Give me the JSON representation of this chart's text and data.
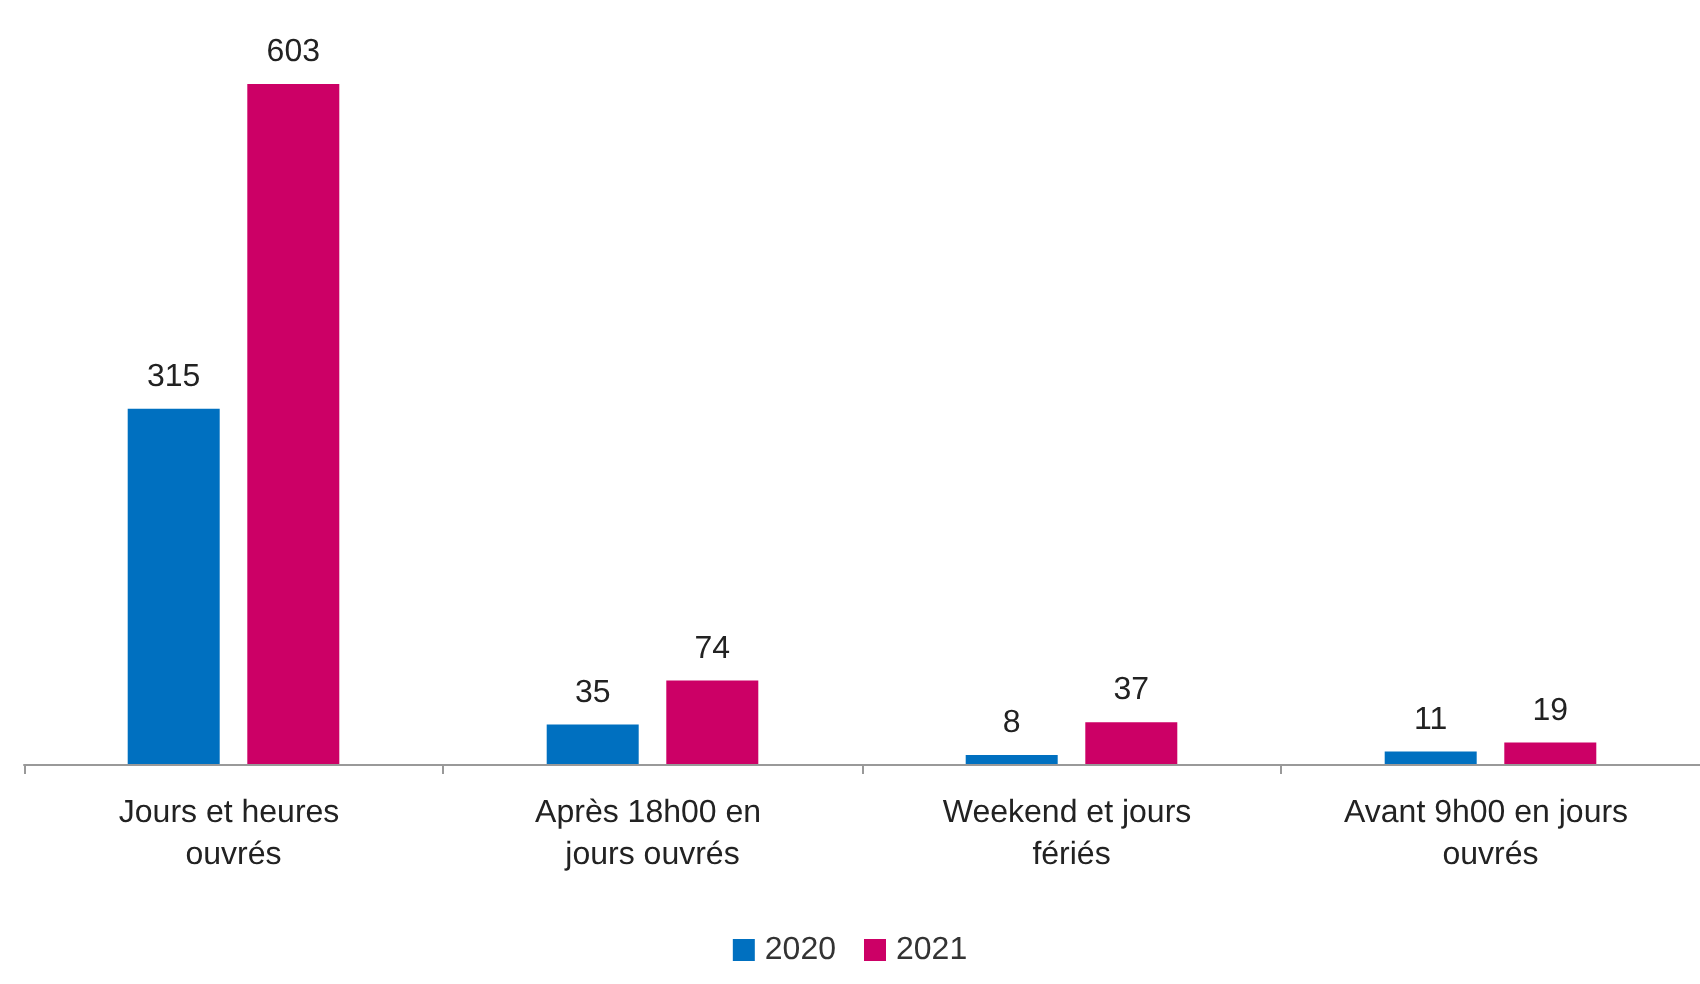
{
  "chart_data": {
    "type": "bar",
    "categories": [
      "Jours et heures ouvrés",
      "Après 18h00 en jours ouvrés",
      "Weekend et jours fériés",
      "Avant 9h00 en jours ouvrés"
    ],
    "series": [
      {
        "name": "2020",
        "color": "#0070c0",
        "values": [
          315,
          35,
          8,
          11
        ]
      },
      {
        "name": "2021",
        "color": "#cc0066",
        "values": [
          603,
          74,
          37,
          19
        ]
      }
    ],
    "data_labels": true,
    "legend": "bottom",
    "grid": false
  }
}
